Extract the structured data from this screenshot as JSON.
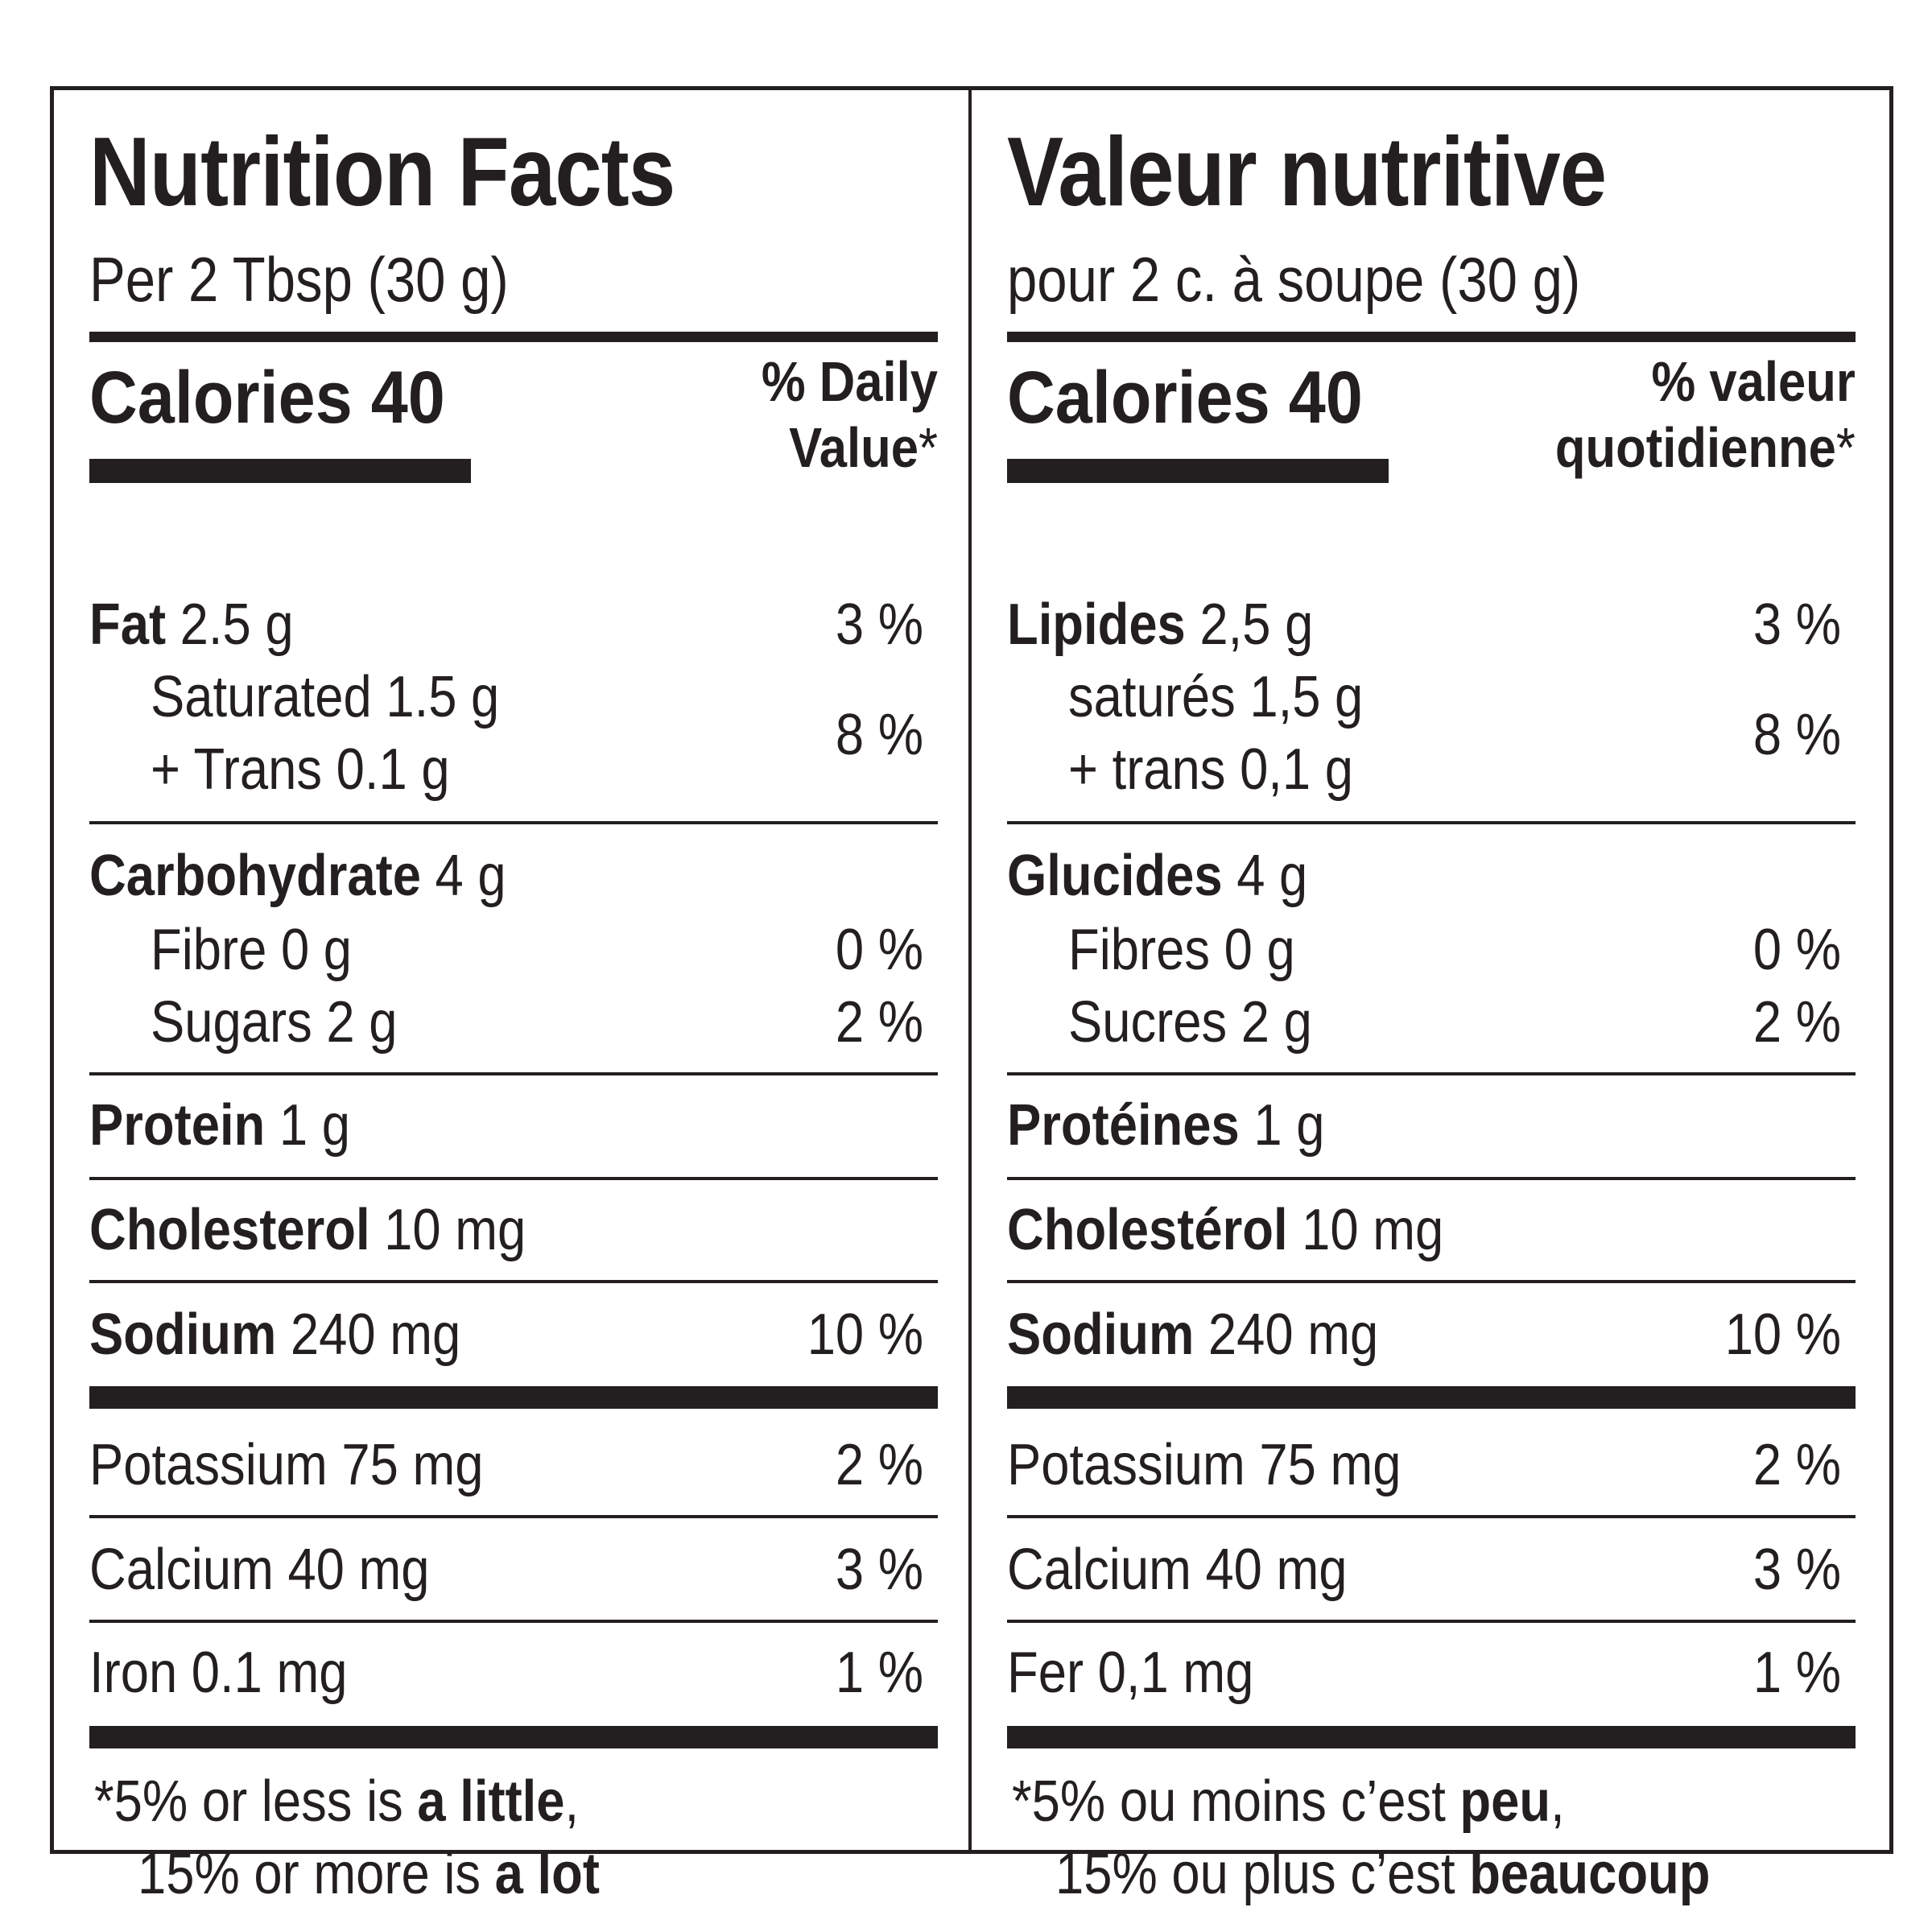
{
  "left": {
    "title": "Nutrition Facts",
    "serving": "Per 2 Tbsp (30 g)",
    "calories_label": "Calories",
    "calories_value": "40",
    "dv_line1": "% Daily",
    "dv_line2": "Value",
    "dv_star": "*",
    "fat_label": "Fat",
    "fat_amount": " 2.5 g",
    "fat_pct": "3 %",
    "saturated": "Saturated 1.5 g",
    "trans": "+ Trans 0.1 g",
    "sat_trans_pct": "8 %",
    "carb_label": "Carbohydrate",
    "carb_amount": " 4 g",
    "fibre": "Fibre 0 g",
    "fibre_pct": "0 %",
    "sugars": "Sugars 2 g",
    "sugars_pct": "2 %",
    "protein_label": "Protein",
    "protein_amount": " 1 g",
    "cholesterol_label": "Cholesterol",
    "cholesterol_amount": " 10 mg",
    "sodium_label": "Sodium",
    "sodium_amount": " 240 mg",
    "sodium_pct": "10 %",
    "potassium": "Potassium 75 mg",
    "potassium_pct": "2 %",
    "calcium": "Calcium 40 mg",
    "calcium_pct": "3 %",
    "iron": "Iron 0.1 mg",
    "iron_pct": "1 %",
    "foot_star": "*",
    "foot1_a": "5% or less is ",
    "foot1_b": "a little",
    "foot1_c": ",",
    "foot2_a": "15% or more is ",
    "foot2_b": "a lot"
  },
  "right": {
    "title": "Valeur nutritive",
    "serving": "pour 2 c. à soupe (30 g)",
    "calories_label": "Calories",
    "calories_value": "40",
    "dv_line1": "% valeur",
    "dv_line2": "quotidienne",
    "dv_star": "*",
    "fat_label": "Lipides",
    "fat_amount": " 2,5 g",
    "fat_pct": "3 %",
    "saturated": "saturés 1,5 g",
    "trans": "+ trans 0,1 g",
    "sat_trans_pct": "8 %",
    "carb_label": "Glucides",
    "carb_amount": " 4 g",
    "fibre": "Fibres 0 g",
    "fibre_pct": "0 %",
    "sugars": "Sucres 2 g",
    "sugars_pct": "2 %",
    "protein_label": "Protéines",
    "protein_amount": " 1 g",
    "cholesterol_label": "Cholestérol",
    "cholesterol_amount": " 10 mg",
    "sodium_label": "Sodium",
    "sodium_amount": " 240 mg",
    "sodium_pct": "10 %",
    "potassium": "Potassium 75 mg",
    "potassium_pct": "2 %",
    "calcium": "Calcium 40 mg",
    "calcium_pct": "3 %",
    "iron": "Fer 0,1 mg",
    "iron_pct": "1 %",
    "foot_star": "*",
    "foot1_a": "5% ou moins c’est ",
    "foot1_b": "peu",
    "foot1_c": ",",
    "foot2_a": "15% ou plus c’est ",
    "foot2_b": "beaucoup"
  }
}
